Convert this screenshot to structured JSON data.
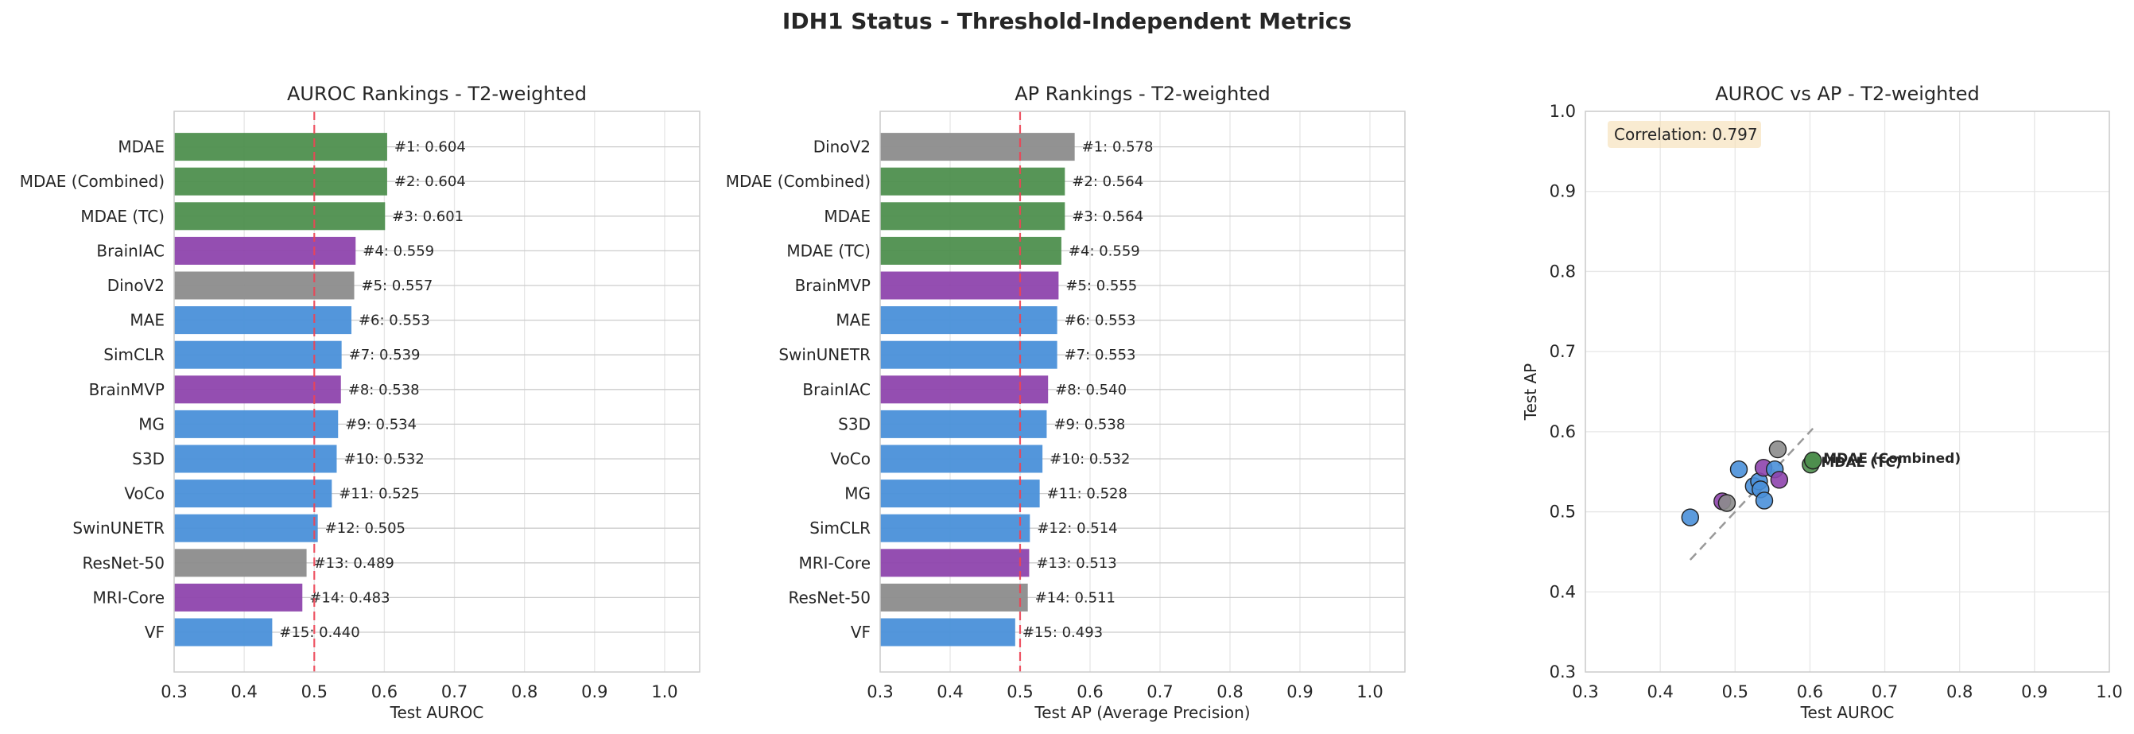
{
  "figure": {
    "suptitle": "IDH1 Status - Threshold-Independent Metrics"
  },
  "colors": {
    "blue": "#4a90d9",
    "purple": "#8e44ad",
    "gray": "#8c8c8c",
    "green": "#4e8f4e",
    "ref_line": "#ee4455",
    "grid": "#e6e6e6",
    "spine": "#cccccc",
    "diag": "#999999"
  },
  "chart_data": [
    {
      "type": "bar",
      "orientation": "horizontal",
      "title": "AUROC Rankings - T2-weighted",
      "xlabel": "Test AUROC",
      "xlim": [
        0.3,
        1.05
      ],
      "xticks": [
        "0.3",
        "0.4",
        "0.5",
        "0.6",
        "0.7",
        "0.8",
        "0.9",
        "1.0"
      ],
      "reference_line": 0.5,
      "grid": true,
      "bars": [
        {
          "label": "VF",
          "value": 0.44,
          "rank": "#15: 0.440",
          "color": "blue"
        },
        {
          "label": "MRI-Core",
          "value": 0.483,
          "rank": "#14: 0.483",
          "color": "purple"
        },
        {
          "label": "ResNet-50",
          "value": 0.489,
          "rank": "#13: 0.489",
          "color": "gray"
        },
        {
          "label": "SwinUNETR",
          "value": 0.505,
          "rank": "#12: 0.505",
          "color": "blue"
        },
        {
          "label": "VoCo",
          "value": 0.525,
          "rank": "#11: 0.525",
          "color": "blue"
        },
        {
          "label": "S3D",
          "value": 0.532,
          "rank": "#10: 0.532",
          "color": "blue"
        },
        {
          "label": "MG",
          "value": 0.534,
          "rank": "#9: 0.534",
          "color": "blue"
        },
        {
          "label": "BrainMVP",
          "value": 0.538,
          "rank": "#8: 0.538",
          "color": "purple"
        },
        {
          "label": "SimCLR",
          "value": 0.539,
          "rank": "#7: 0.539",
          "color": "blue"
        },
        {
          "label": "MAE",
          "value": 0.553,
          "rank": "#6: 0.553",
          "color": "blue"
        },
        {
          "label": "DinoV2",
          "value": 0.557,
          "rank": "#5: 0.557",
          "color": "gray"
        },
        {
          "label": "BrainIAC",
          "value": 0.559,
          "rank": "#4: 0.559",
          "color": "purple"
        },
        {
          "label": "MDAE (TC)",
          "value": 0.601,
          "rank": "#3: 0.601",
          "color": "green"
        },
        {
          "label": "MDAE (Combined)",
          "value": 0.604,
          "rank": "#2: 0.604",
          "color": "green"
        },
        {
          "label": "MDAE",
          "value": 0.604,
          "rank": "#1: 0.604",
          "color": "green"
        }
      ]
    },
    {
      "type": "bar",
      "orientation": "horizontal",
      "title": "AP Rankings - T2-weighted",
      "xlabel": "Test AP (Average Precision)",
      "xlim": [
        0.3,
        1.05
      ],
      "xticks": [
        "0.3",
        "0.4",
        "0.5",
        "0.6",
        "0.7",
        "0.8",
        "0.9",
        "1.0"
      ],
      "reference_line": 0.5,
      "grid": true,
      "bars": [
        {
          "label": "VF",
          "value": 0.493,
          "rank": "#15: 0.493",
          "color": "blue"
        },
        {
          "label": "ResNet-50",
          "value": 0.511,
          "rank": "#14: 0.511",
          "color": "gray"
        },
        {
          "label": "MRI-Core",
          "value": 0.513,
          "rank": "#13: 0.513",
          "color": "purple"
        },
        {
          "label": "SimCLR",
          "value": 0.514,
          "rank": "#12: 0.514",
          "color": "blue"
        },
        {
          "label": "MG",
          "value": 0.528,
          "rank": "#11: 0.528",
          "color": "blue"
        },
        {
          "label": "VoCo",
          "value": 0.532,
          "rank": "#10: 0.532",
          "color": "blue"
        },
        {
          "label": "S3D",
          "value": 0.538,
          "rank": "#9: 0.538",
          "color": "blue"
        },
        {
          "label": "BrainIAC",
          "value": 0.54,
          "rank": "#8: 0.540",
          "color": "purple"
        },
        {
          "label": "SwinUNETR",
          "value": 0.553,
          "rank": "#7: 0.553",
          "color": "blue"
        },
        {
          "label": "MAE",
          "value": 0.553,
          "rank": "#6: 0.553",
          "color": "blue"
        },
        {
          "label": "BrainMVP",
          "value": 0.555,
          "rank": "#5: 0.555",
          "color": "purple"
        },
        {
          "label": "MDAE (TC)",
          "value": 0.559,
          "rank": "#4: 0.559",
          "color": "green"
        },
        {
          "label": "MDAE",
          "value": 0.564,
          "rank": "#3: 0.564",
          "color": "green"
        },
        {
          "label": "MDAE (Combined)",
          "value": 0.564,
          "rank": "#2: 0.564",
          "color": "green"
        },
        {
          "label": "DinoV2",
          "value": 0.578,
          "rank": "#1: 0.578",
          "color": "gray"
        }
      ]
    },
    {
      "type": "scatter",
      "title": "AUROC vs AP - T2-weighted",
      "xlabel": "Test AUROC",
      "ylabel": "Test AP",
      "xlim": [
        0.3,
        1.0
      ],
      "ylim": [
        0.3,
        1.0
      ],
      "xticks": [
        "0.3",
        "0.4",
        "0.5",
        "0.6",
        "0.7",
        "0.8",
        "0.9",
        "1.0"
      ],
      "yticks": [
        "0.3",
        "0.4",
        "0.5",
        "0.6",
        "0.7",
        "0.8",
        "0.9",
        "1.0"
      ],
      "grid": true,
      "annotation": "Correlation: 0.797",
      "diagonal": [
        0.44,
        0.604
      ],
      "points": [
        {
          "name": "VF",
          "x": 0.44,
          "y": 0.493,
          "color": "blue"
        },
        {
          "name": "MRI-Core",
          "x": 0.483,
          "y": 0.513,
          "color": "purple"
        },
        {
          "name": "ResNet-50",
          "x": 0.489,
          "y": 0.511,
          "color": "gray"
        },
        {
          "name": "SwinUNETR",
          "x": 0.505,
          "y": 0.553,
          "color": "blue"
        },
        {
          "name": "VoCo",
          "x": 0.525,
          "y": 0.532,
          "color": "blue"
        },
        {
          "name": "S3D",
          "x": 0.532,
          "y": 0.538,
          "color": "blue"
        },
        {
          "name": "MG",
          "x": 0.534,
          "y": 0.528,
          "color": "blue"
        },
        {
          "name": "BrainMVP",
          "x": 0.538,
          "y": 0.555,
          "color": "purple"
        },
        {
          "name": "SimCLR",
          "x": 0.539,
          "y": 0.514,
          "color": "blue"
        },
        {
          "name": "MAE",
          "x": 0.553,
          "y": 0.553,
          "color": "blue"
        },
        {
          "name": "DinoV2",
          "x": 0.557,
          "y": 0.578,
          "color": "gray"
        },
        {
          "name": "BrainIAC",
          "x": 0.559,
          "y": 0.54,
          "color": "purple"
        },
        {
          "name": "MDAE (TC)",
          "x": 0.601,
          "y": 0.559,
          "color": "green",
          "label": "MDAE (TC)"
        },
        {
          "name": "MDAE (Combined)",
          "x": 0.604,
          "y": 0.564,
          "color": "green",
          "label": "MDAE (Combined)"
        },
        {
          "name": "MDAE",
          "x": 0.604,
          "y": 0.564,
          "color": "green"
        }
      ]
    }
  ]
}
